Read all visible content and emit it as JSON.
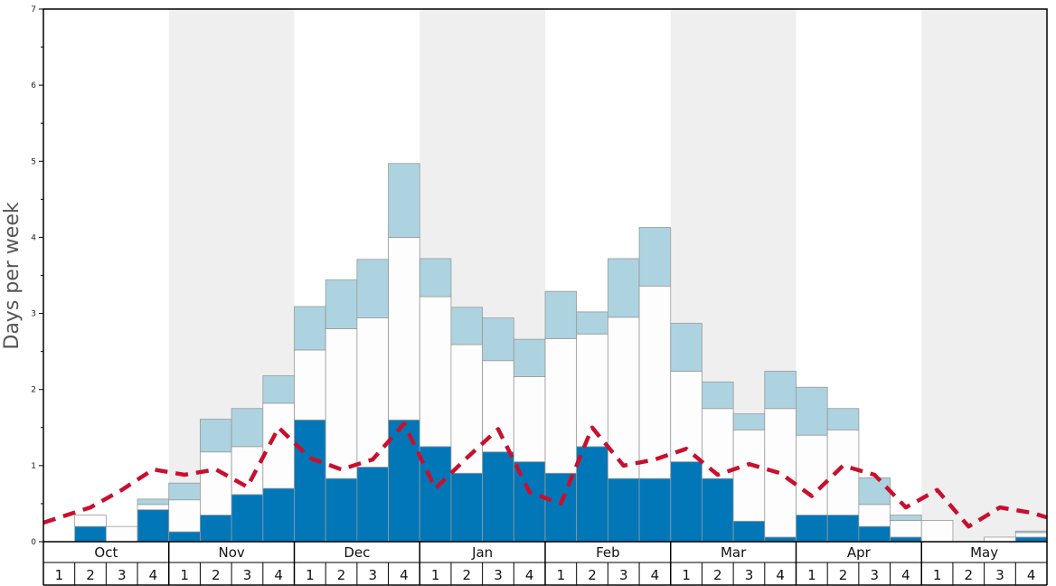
{
  "chart_data": {
    "type": "bar",
    "ylabel": "Days per week",
    "ylim": [
      0,
      7
    ],
    "yticks": [
      "0",
      "1",
      "2",
      "3",
      "4",
      "5",
      "6",
      "7"
    ],
    "months": [
      "Oct",
      "Nov",
      "Dec",
      "Jan",
      "Feb",
      "Mar",
      "Apr",
      "May"
    ],
    "weeks": [
      "1",
      "2",
      "3",
      "4"
    ],
    "colors": {
      "dark": "#0277b8",
      "white": "#fdfdfd",
      "light": "#add3e0",
      "line": "#c8102e",
      "band": "#efefef",
      "bar_edge": "#999999"
    },
    "series": [
      {
        "key": "dark",
        "values": [
          0,
          0.2,
          0,
          0.42,
          0.13,
          0.35,
          0.62,
          0.7,
          1.6,
          0.83,
          0.98,
          1.6,
          1.25,
          0.9,
          1.18,
          1.05,
          0.9,
          1.25,
          0.83,
          0.83,
          1.05,
          0.83,
          0.27,
          0.06,
          0.35,
          0.35,
          0.2,
          0.06,
          0,
          0,
          0,
          0.06
        ]
      },
      {
        "key": "white",
        "values": [
          0,
          0.15,
          0.2,
          0.07,
          0.42,
          0.83,
          0.63,
          1.12,
          0.92,
          1.97,
          1.96,
          2.4,
          1.97,
          1.69,
          1.2,
          1.12,
          1.77,
          1.48,
          2.12,
          2.53,
          1.19,
          0.92,
          1.2,
          1.69,
          1.05,
          1.12,
          0.29,
          0.22,
          0.28,
          0,
          0.06,
          0.06
        ]
      },
      {
        "key": "light",
        "values": [
          0,
          0,
          0,
          0.07,
          0.22,
          0.43,
          0.5,
          0.36,
          0.57,
          0.64,
          0.77,
          0.97,
          0.5,
          0.49,
          0.56,
          0.49,
          0.62,
          0.29,
          0.77,
          0.77,
          0.63,
          0.35,
          0.21,
          0.49,
          0.63,
          0.28,
          0.35,
          0.07,
          0,
          0,
          0,
          0.02
        ]
      }
    ],
    "line": [
      0.25,
      0.45,
      0.68,
      0.95,
      0.88,
      0.95,
      0.72,
      1.5,
      1.1,
      0.95,
      1.08,
      1.55,
      0.7,
      1.1,
      1.48,
      0.65,
      0.5,
      1.5,
      1.0,
      1.08,
      1.22,
      0.88,
      1.02,
      0.9,
      0.6,
      1.0,
      0.88,
      0.45,
      0.68,
      0.2,
      0.45,
      0.38
    ]
  }
}
